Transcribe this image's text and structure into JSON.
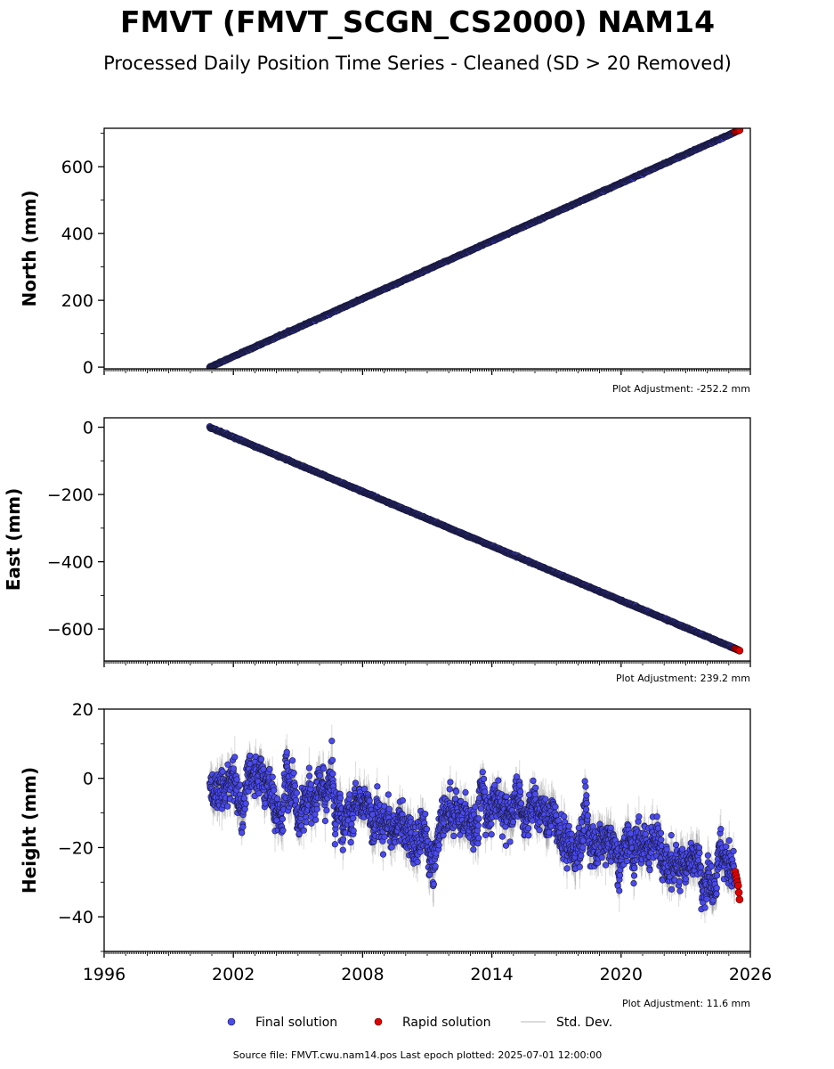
{
  "title": "FMVT (FMVT_SCGN_CS2000) NAM14",
  "subtitle": "Processed Daily Position Time Series - Cleaned (SD > 20 Removed)",
  "source_text": "Source file: FMVT.cwu.nam14.pos  Last epoch plotted: 2025-07-01 12:00:00",
  "legend": {
    "final": "Final solution",
    "rapid": "Rapid solution",
    "std": "Std. Dev."
  },
  "colors": {
    "final": "#4a4aee",
    "rapid": "#e00000",
    "std": "#bdbdbd",
    "outline": "#1a1a40"
  },
  "chart_data": [
    {
      "type": "scatter",
      "ylabel": "North (mm)",
      "adjustment": "Plot Adjustment: -252.2 mm",
      "xlim": [
        1996,
        2026
      ],
      "ylim": [
        -5,
        715
      ],
      "yticks": [
        0,
        200,
        400,
        600
      ],
      "ytick_labels": [
        "0",
        "200",
        "400",
        "600"
      ],
      "xtick_labels_shown": false,
      "final": {
        "x_start": 2000.9,
        "x_end": 2025.3,
        "y_start": 0,
        "y_end": 704,
        "noise_sd": 2.5,
        "scatter_sd": 0.9
      },
      "rapid": {
        "x_start": 2025.3,
        "x_end": 2025.5,
        "y_start": 705,
        "y_end": 710
      }
    },
    {
      "type": "scatter",
      "ylabel": "East (mm)",
      "adjustment": "Plot Adjustment: 239.2 mm",
      "xlim": [
        1996,
        2026
      ],
      "ylim": [
        -695,
        28
      ],
      "yticks": [
        0,
        -200,
        -400,
        -600
      ],
      "ytick_labels": [
        "0",
        "−200",
        "−400",
        "−600"
      ],
      "xtick_labels_shown": false,
      "final": {
        "x_start": 2000.9,
        "x_end": 2025.3,
        "y_start": 0,
        "y_end": -658,
        "noise_sd": 2.0,
        "scatter_sd": 0.9
      },
      "rapid": {
        "x_start": 2025.3,
        "x_end": 2025.5,
        "y_start": -658,
        "y_end": -664
      }
    },
    {
      "type": "scatter",
      "ylabel": "Height (mm)",
      "adjustment": "Plot Adjustment: 11.6 mm",
      "xlim": [
        1996,
        2026
      ],
      "ylim": [
        -50,
        20
      ],
      "yticks": [
        20,
        0,
        -20,
        -40
      ],
      "ytick_labels": [
        "20",
        "0",
        "−20",
        "−40"
      ],
      "xticks": [
        1996,
        2002,
        2008,
        2014,
        2020,
        2026
      ],
      "xtick_labels": [
        "1996",
        "2002",
        "2008",
        "2014",
        "2020",
        "2026"
      ],
      "xtick_labels_shown": true,
      "final": {
        "x_start": 2000.9,
        "x_end": 2025.3,
        "noise_sd": 4.2,
        "scatter_sd": 2.6,
        "trend_points": [
          [
            2000.9,
            -4
          ],
          [
            2002.0,
            -1
          ],
          [
            2003.0,
            2
          ],
          [
            2004.0,
            0
          ],
          [
            2005.0,
            -8
          ],
          [
            2006.0,
            -8
          ],
          [
            2007.0,
            -9
          ],
          [
            2008.0,
            -12
          ],
          [
            2009.0,
            -12
          ],
          [
            2010.0,
            -16
          ],
          [
            2011.0,
            -18
          ],
          [
            2012.0,
            -12
          ],
          [
            2013.0,
            -11
          ],
          [
            2014.0,
            -11
          ],
          [
            2015.0,
            -9
          ],
          [
            2016.0,
            -13
          ],
          [
            2017.0,
            -15
          ],
          [
            2018.0,
            -18
          ],
          [
            2019.0,
            -19
          ],
          [
            2020.0,
            -22
          ],
          [
            2021.0,
            -21
          ],
          [
            2022.0,
            -20
          ],
          [
            2023.0,
            -23
          ],
          [
            2024.0,
            -27
          ],
          [
            2025.3,
            -29
          ]
        ]
      },
      "rapid": {
        "x_start": 2025.3,
        "x_end": 2025.5,
        "y_values": [
          -27,
          -28,
          -29,
          -30,
          -31,
          -33,
          -35
        ]
      }
    }
  ]
}
